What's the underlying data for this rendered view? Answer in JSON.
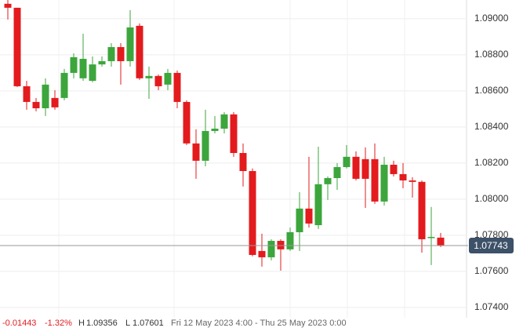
{
  "chart_data": {
    "type": "candlestick",
    "open": [
      1.09083,
      1.09061,
      1.08626,
      1.08539,
      1.08504,
      1.08561,
      1.08561,
      1.087,
      1.0867,
      1.08656,
      1.08747,
      1.08765,
      1.08843,
      1.08765,
      1.08961,
      1.0867,
      1.08683,
      1.08635,
      1.087,
      1.08539,
      1.08309,
      1.08213,
      1.08378,
      1.08391,
      1.0847,
      1.08256,
      1.08156,
      1.07713,
      1.07678,
      1.07769,
      1.07722,
      1.07817,
      1.07948,
      1.07856,
      1.08083,
      1.08117,
      1.08178,
      1.08235,
      1.08222,
      1.08222,
      1.07987,
      1.08191,
      1.08139,
      1.08104,
      1.08096,
      1.07787,
      1.07787
    ],
    "high": [
      1.09104,
      1.09061,
      1.08656,
      1.08561,
      1.0867,
      1.08604,
      1.08722,
      1.08809,
      1.08917,
      1.08791,
      1.08791,
      1.08865,
      1.08865,
      1.09048,
      1.08974,
      1.08735,
      1.08691,
      1.08722,
      1.08713,
      1.08548,
      1.08387,
      1.08496,
      1.08461,
      1.08483,
      1.08483,
      1.08309,
      1.0817,
      1.07809,
      1.07778,
      1.07778,
      1.07843,
      1.08039,
      1.08235,
      1.08291,
      1.08126,
      1.082,
      1.083,
      1.08265,
      1.08287,
      1.08309,
      1.08235,
      1.08213,
      1.082,
      1.08122,
      1.08104,
      1.07957,
      1.07813
    ],
    "low": [
      1.08996,
      1.08622,
      1.08496,
      1.08487,
      1.08461,
      1.08496,
      1.08548,
      1.0867,
      1.08656,
      1.08648,
      1.08735,
      1.08735,
      1.08635,
      1.08735,
      1.08661,
      1.08556,
      1.08604,
      1.08604,
      1.08504,
      1.083,
      1.08113,
      1.08182,
      1.08365,
      1.08365,
      1.08235,
      1.0807,
      1.07683,
      1.07626,
      1.07661,
      1.07604,
      1.07713,
      1.07713,
      1.07843,
      1.07835,
      1.07996,
      1.08052,
      1.0817,
      1.08104,
      1.07952,
      1.07974,
      1.07965,
      1.08126,
      1.08061,
      1.08009,
      1.07704,
      1.07635,
      1.07735
    ],
    "close": [
      1.09061,
      1.08626,
      1.08539,
      1.08504,
      1.08635,
      1.08509,
      1.087,
      1.08787,
      1.08778,
      1.08747,
      1.08765,
      1.08843,
      1.08765,
      1.08952,
      1.0867,
      1.08683,
      1.08626,
      1.087,
      1.08539,
      1.08309,
      1.08213,
      1.08378,
      1.08391,
      1.0847,
      1.08256,
      1.08156,
      1.07691,
      1.07678,
      1.07769,
      1.07722,
      1.07817,
      1.07948,
      1.07865,
      1.08083,
      1.08117,
      1.08178,
      1.08235,
      1.08113,
      1.08113,
      1.07987,
      1.08191,
      1.08139,
      1.08104,
      1.08096,
      1.07778,
      1.07791,
      1.07743
    ],
    "up_color": "#3ca63c",
    "down_color": "#e31b1e",
    "ylim": [
      1.07343,
      1.09104
    ],
    "yticks": [
      {
        "value": 1.09,
        "label": "1.09000"
      },
      {
        "value": 1.088,
        "label": "1.08800"
      },
      {
        "value": 1.086,
        "label": "1.08600"
      },
      {
        "value": 1.084,
        "label": "1.08400"
      },
      {
        "value": 1.082,
        "label": "1.08200"
      },
      {
        "value": 1.08,
        "label": "1.08000"
      },
      {
        "value": 1.078,
        "label": "1.07800"
      },
      {
        "value": 1.076,
        "label": "1.07600"
      },
      {
        "value": 1.074,
        "label": "1.07400"
      }
    ],
    "grid": true,
    "last_price": 1.07743,
    "change": -0.01443,
    "change_pct": "-1.32%",
    "high_label": "H",
    "period_high": 1.09356,
    "low_label": "L",
    "period_low": 1.07601,
    "period": "Fri 12 May 2023 4:00 - Thu 25 May 2023 0:00"
  }
}
